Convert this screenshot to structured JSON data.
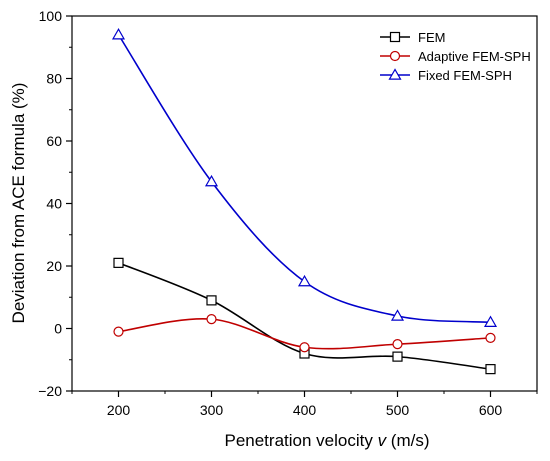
{
  "chart_data": {
    "type": "line",
    "x": [
      200,
      300,
      400,
      500,
      600
    ],
    "xlim": [
      150,
      650
    ],
    "ylim": [
      -20,
      100
    ],
    "xticks": [
      200,
      300,
      400,
      500,
      600
    ],
    "yticks": [
      -20,
      0,
      20,
      40,
      60,
      80,
      100
    ],
    "xlabel_main": "Penetration velocity ",
    "xlabel_var": "v",
    "xlabel_unit": " (m/s)",
    "ylabel": "Deviation from ACE formula (%)",
    "grid": false,
    "legend_position": "top-right",
    "series": [
      {
        "name": "FEM",
        "values": [
          21,
          9,
          -8,
          -9,
          -13
        ],
        "color": "#000000",
        "marker": "square"
      },
      {
        "name": "Adaptive FEM-SPH",
        "values": [
          -1,
          3,
          -6,
          -5,
          -3
        ],
        "color": "#c00000",
        "marker": "circle"
      },
      {
        "name": "Fixed FEM-SPH",
        "values": [
          94,
          47,
          15,
          4,
          2
        ],
        "color": "#0000cc",
        "marker": "triangle"
      }
    ]
  }
}
